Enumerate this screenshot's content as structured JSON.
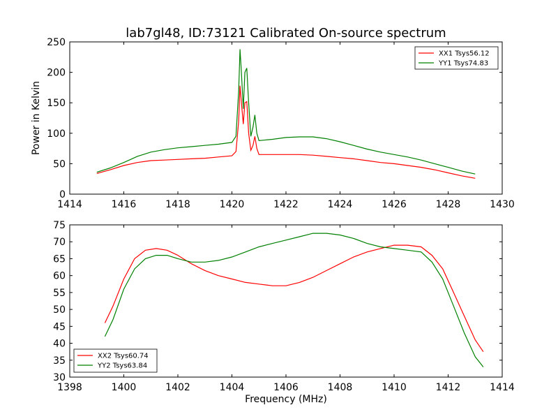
{
  "figure": {
    "title": "lab7gl48, ID:73121 Calibrated On-source spectrum",
    "shared_xlabel": "Frequency (MHz)"
  },
  "chart_data": [
    {
      "type": "line",
      "title": "lab7gl48, ID:73121 Calibrated On-source spectrum",
      "xlabel": "",
      "ylabel": "Power in Kelvin",
      "xlim": [
        1414,
        1430
      ],
      "ylim": [
        0,
        250
      ],
      "xticks": [
        1414,
        1416,
        1418,
        1420,
        1422,
        1424,
        1426,
        1428,
        1430
      ],
      "yticks": [
        0,
        50,
        100,
        150,
        200,
        250
      ],
      "legend_position": "top-right",
      "grid": false,
      "series": [
        {
          "name": "XX1 Tsys56.12",
          "color": "#ff0000",
          "x": [
            1415.0,
            1415.5,
            1416.0,
            1416.5,
            1417.0,
            1417.5,
            1418.0,
            1418.5,
            1419.0,
            1419.5,
            1420.0,
            1420.15,
            1420.25,
            1420.3,
            1420.35,
            1420.42,
            1420.48,
            1420.55,
            1420.62,
            1420.7,
            1420.78,
            1420.85,
            1420.92,
            1421.0,
            1421.5,
            1422.0,
            1422.5,
            1423.0,
            1423.5,
            1424.0,
            1424.5,
            1425.0,
            1425.5,
            1426.0,
            1426.5,
            1427.0,
            1427.5,
            1428.0,
            1428.5,
            1429.0
          ],
          "y": [
            34,
            40,
            47,
            52,
            55,
            56,
            57,
            58,
            59,
            61,
            63,
            70,
            120,
            178,
            150,
            115,
            150,
            152,
            100,
            72,
            80,
            95,
            75,
            65,
            65,
            65,
            65,
            64,
            62,
            60,
            58,
            55,
            52,
            50,
            47,
            44,
            40,
            35,
            30,
            26
          ]
        },
        {
          "name": "YY1 Tsys74.83",
          "color": "#008000",
          "x": [
            1415.0,
            1415.5,
            1416.0,
            1416.5,
            1417.0,
            1417.5,
            1418.0,
            1418.5,
            1419.0,
            1419.5,
            1420.0,
            1420.15,
            1420.25,
            1420.3,
            1420.35,
            1420.42,
            1420.48,
            1420.55,
            1420.62,
            1420.7,
            1420.78,
            1420.85,
            1420.92,
            1421.0,
            1421.5,
            1422.0,
            1422.5,
            1423.0,
            1423.5,
            1424.0,
            1424.5,
            1425.0,
            1425.5,
            1426.0,
            1426.5,
            1427.0,
            1427.5,
            1428.0,
            1428.5,
            1429.0
          ],
          "y": [
            36,
            43,
            52,
            62,
            69,
            73,
            76,
            78,
            80,
            82,
            85,
            95,
            170,
            238,
            200,
            140,
            200,
            207,
            150,
            95,
            110,
            130,
            100,
            88,
            90,
            93,
            94,
            94,
            91,
            86,
            80,
            74,
            69,
            65,
            61,
            56,
            50,
            44,
            38,
            33
          ]
        }
      ]
    },
    {
      "type": "line",
      "title": "",
      "xlabel": "Frequency (MHz)",
      "ylabel": "",
      "xlim": [
        1398,
        1414
      ],
      "ylim": [
        30,
        75
      ],
      "xticks": [
        1398,
        1400,
        1402,
        1404,
        1406,
        1408,
        1410,
        1412,
        1414
      ],
      "yticks": [
        30,
        35,
        40,
        45,
        50,
        55,
        60,
        65,
        70,
        75
      ],
      "legend_position": "bottom-left",
      "grid": false,
      "series": [
        {
          "name": "XX2 Tsys60.74",
          "color": "#ff0000",
          "x": [
            1399.3,
            1399.6,
            1400.0,
            1400.4,
            1400.8,
            1401.2,
            1401.6,
            1402.0,
            1402.5,
            1403.0,
            1403.5,
            1404.0,
            1404.5,
            1405.0,
            1405.5,
            1406.0,
            1406.5,
            1407.0,
            1407.5,
            1408.0,
            1408.5,
            1409.0,
            1409.5,
            1410.0,
            1410.5,
            1411.0,
            1411.4,
            1411.8,
            1412.2,
            1412.6,
            1413.0,
            1413.3
          ],
          "y": [
            46,
            51,
            59,
            65,
            67.5,
            68,
            67.5,
            66,
            63.5,
            61.5,
            60,
            59,
            58,
            57.5,
            57,
            57,
            58,
            59.5,
            61.5,
            63.5,
            65.5,
            67,
            68,
            69,
            69,
            68.5,
            66,
            62,
            55,
            48,
            41,
            37.5
          ]
        },
        {
          "name": "YY2 Tsys63.84",
          "color": "#008000",
          "x": [
            1399.3,
            1399.6,
            1400.0,
            1400.4,
            1400.8,
            1401.2,
            1401.6,
            1402.0,
            1402.5,
            1403.0,
            1403.5,
            1404.0,
            1404.5,
            1405.0,
            1405.5,
            1406.0,
            1406.5,
            1407.0,
            1407.5,
            1408.0,
            1408.5,
            1409.0,
            1409.5,
            1410.0,
            1410.5,
            1411.0,
            1411.4,
            1411.8,
            1412.2,
            1412.6,
            1413.0,
            1413.3
          ],
          "y": [
            42,
            47,
            56,
            62,
            65,
            66,
            66,
            65,
            64,
            64,
            64.5,
            65.5,
            67,
            68.5,
            69.5,
            70.5,
            71.5,
            72.5,
            72.5,
            72,
            71,
            69.5,
            68.5,
            68,
            67.5,
            67,
            64,
            59,
            51,
            43,
            36,
            33
          ]
        }
      ]
    }
  ]
}
